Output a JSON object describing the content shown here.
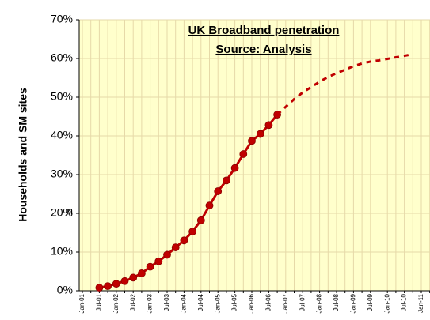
{
  "chart_data": {
    "type": "line",
    "title": "UK Broadband penetration",
    "subtitle": "Source: Analysis",
    "y_label": "Households and SM sites",
    "annotation": "n",
    "categories": [
      "Jan-01",
      null,
      "Jul-01",
      null,
      "Jan-02",
      null,
      "Jul-02",
      null,
      "Jan-03",
      null,
      "Jul-03",
      null,
      "Jan-04",
      null,
      "Jul-04",
      null,
      "Jan-05",
      null,
      "Jul-05",
      null,
      "Jan-06",
      null,
      "Jul-06",
      null,
      "Jan-07",
      null,
      "Jul-07",
      null,
      "Jan-08",
      null,
      "Jul-08",
      null,
      "Jan-09",
      null,
      "Jul-09",
      null,
      "Jan-10",
      null,
      "Jul-10",
      null,
      "Jan-11",
      null
    ],
    "series": [
      {
        "color": "#c00000",
        "style": "solid",
        "markers": true,
        "values": [
          null,
          null,
          0.8,
          1.2,
          1.8,
          2.5,
          3.4,
          4.5,
          6.2,
          7.6,
          9.3,
          11.2,
          13.0,
          15.3,
          18.2,
          22.0,
          25.7,
          28.5,
          31.7,
          35.3,
          38.7,
          40.5,
          42.8,
          45.5,
          null,
          null,
          null,
          null,
          null,
          null,
          null,
          null,
          null,
          null,
          null,
          null,
          null,
          null,
          null,
          null,
          null,
          null
        ]
      },
      {
        "color": "#c00000",
        "style": "dashed",
        "markers": false,
        "values": [
          null,
          null,
          null,
          null,
          null,
          null,
          null,
          null,
          null,
          null,
          null,
          null,
          null,
          null,
          null,
          null,
          null,
          null,
          null,
          null,
          null,
          null,
          null,
          45.5,
          47.5,
          49.5,
          51.2,
          52.6,
          54.0,
          55.2,
          56.2,
          57.1,
          58.0,
          58.7,
          59.2,
          59.5,
          59.9,
          60.3,
          60.7,
          61.1,
          null,
          null
        ]
      }
    ],
    "ylim": [
      0,
      70
    ],
    "yticks": [
      {
        "value": 0,
        "label": "0%"
      },
      {
        "value": 10,
        "label": "10%"
      },
      {
        "value": 20,
        "label": "20%"
      },
      {
        "value": 30,
        "label": "30%"
      },
      {
        "value": 40,
        "label": "40%"
      },
      {
        "value": 50,
        "label": "50%"
      },
      {
        "value": 60,
        "label": "60%"
      },
      {
        "value": 70,
        "label": "70%"
      }
    ],
    "grid": true,
    "plot_background": "#ffffcc"
  }
}
